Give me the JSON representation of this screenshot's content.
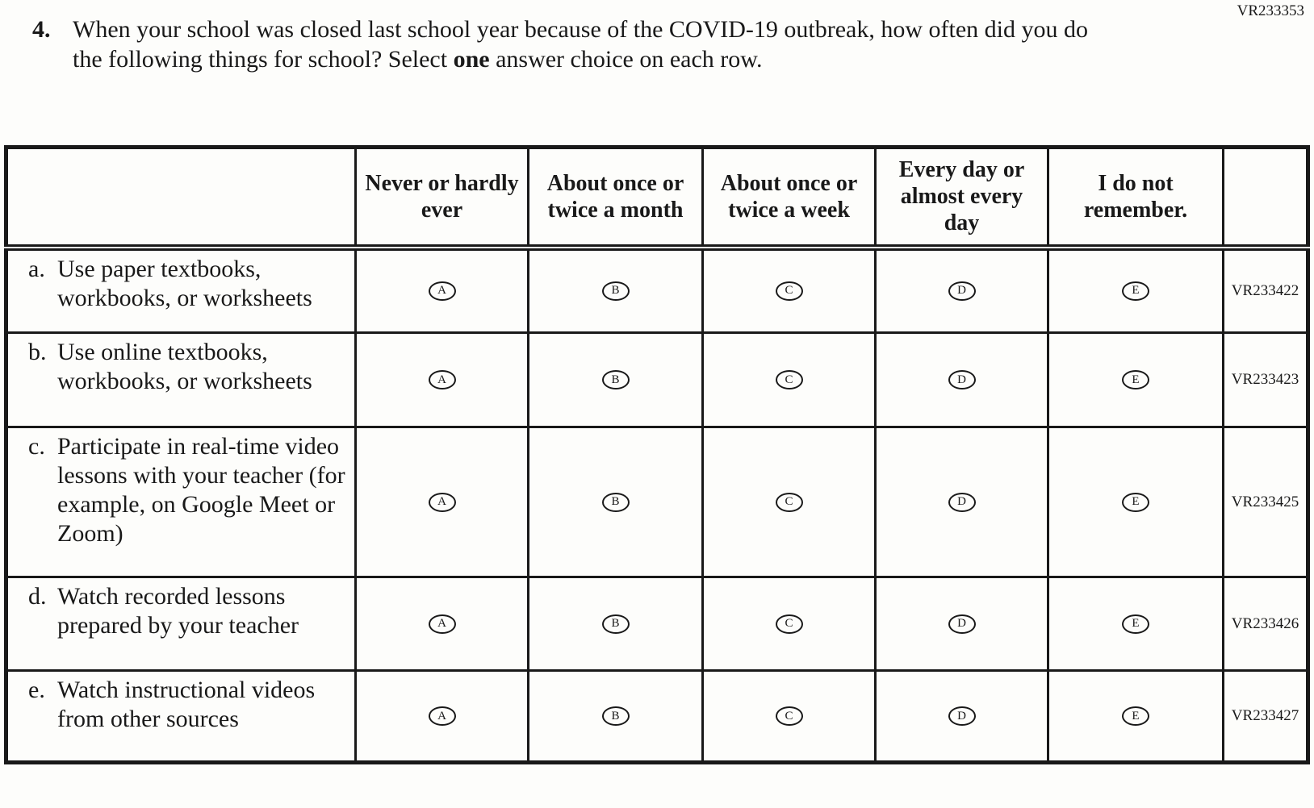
{
  "page": {
    "form_code": "VR233353"
  },
  "question": {
    "number": "4.",
    "text_before_bold": "When your school was closed last school year because of the COVID-19 outbreak, how often did you do the following things for school? Select ",
    "bold_word": "one",
    "text_after_bold": " answer choice on each row."
  },
  "table": {
    "column_headers": [
      "",
      "Never or hardly ever",
      "About once or twice a month",
      "About once or twice a week",
      "Every day or almost every day",
      "I do not remember.",
      ""
    ],
    "choice_letters": [
      "A",
      "B",
      "C",
      "D",
      "E"
    ],
    "rows": [
      {
        "letter": "a.",
        "label": "Use paper textbooks, workbooks, or worksheets",
        "code": "VR233422"
      },
      {
        "letter": "b.",
        "label": "Use online textbooks, workbooks, or worksheets",
        "code": "VR233423"
      },
      {
        "letter": "c.",
        "label": "Participate in real-time video lessons with your teacher (for example, on Google Meet or Zoom)",
        "code": "VR233425"
      },
      {
        "letter": "d.",
        "label": "Watch recorded lessons prepared by your teacher",
        "code": "VR233426"
      },
      {
        "letter": "e.",
        "label": "Watch instructional videos from other sources",
        "code": "VR233427"
      }
    ]
  },
  "colors": {
    "ink": "#191919",
    "paper": "#fdfdfb"
  }
}
